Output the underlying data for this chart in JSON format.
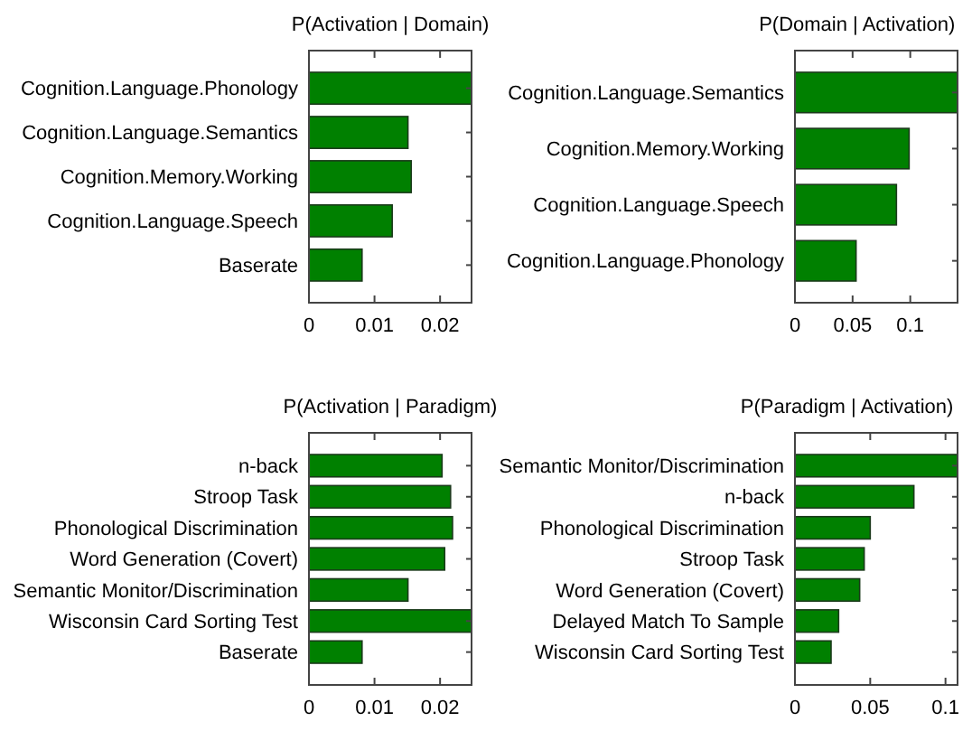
{
  "chart_data": [
    {
      "type": "bar",
      "orientation": "horizontal",
      "title": "P(Activation | Domain)",
      "categories": [
        "Cognition.Language.Phonology",
        "Cognition.Language.Semantics",
        "Cognition.Memory.Working",
        "Cognition.Language.Speech",
        "Baserate"
      ],
      "values": [
        0.0248,
        0.0151,
        0.0156,
        0.0127,
        0.0081
      ],
      "color": "#008000",
      "xlim": [
        0,
        0.0248
      ],
      "xticks": [
        0,
        0.01,
        0.02
      ]
    },
    {
      "type": "bar",
      "orientation": "horizontal",
      "title": "P(Domain | Activation)",
      "categories": [
        "Cognition.Language.Semantics",
        "Cognition.Memory.Working",
        "Cognition.Language.Speech",
        "Cognition.Language.Phonology"
      ],
      "values": [
        0.141,
        0.099,
        0.088,
        0.053
      ],
      "color": "#008000",
      "xlim": [
        0,
        0.141
      ],
      "xticks": [
        0,
        0.05,
        0.1
      ]
    },
    {
      "type": "bar",
      "orientation": "horizontal",
      "title": "P(Activation | Paradigm)",
      "categories": [
        "n-back",
        "Stroop Task",
        "Phonological Discrimination",
        "Word Generation (Covert)",
        "Semantic Monitor/Discrimination",
        "Wisconsin Card Sorting Test",
        "Baserate"
      ],
      "values": [
        0.0203,
        0.0216,
        0.0219,
        0.0207,
        0.0151,
        0.0248,
        0.0081
      ],
      "color": "#008000",
      "xlim": [
        0,
        0.0248
      ],
      "xticks": [
        0,
        0.01,
        0.02
      ]
    },
    {
      "type": "bar",
      "orientation": "horizontal",
      "title": "P(Paradigm | Activation)",
      "categories": [
        "Semantic Monitor/Discrimination",
        "n-back",
        "Phonological Discrimination",
        "Stroop Task",
        "Word Generation (Covert)",
        "Delayed Match To Sample",
        "Wisconsin Card Sorting Test"
      ],
      "values": [
        0.108,
        0.079,
        0.05,
        0.046,
        0.043,
        0.029,
        0.024
      ],
      "color": "#008000",
      "xlim": [
        0,
        0.108
      ],
      "xticks": [
        0,
        0.05,
        0.1
      ]
    }
  ]
}
